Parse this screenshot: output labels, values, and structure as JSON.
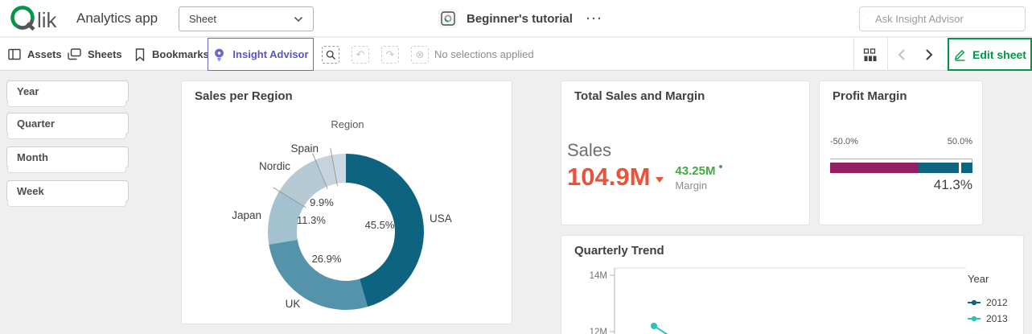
{
  "header": {
    "brand": "Qlik",
    "app_title": "Analytics app",
    "sheet_selector_value": "Sheet",
    "document_name": "Beginner's tutorial",
    "more_menu": "···",
    "search_placeholder": "Ask Insight Advisor"
  },
  "toolbar": {
    "assets_label": "Assets",
    "sheets_label": "Sheets",
    "bookmarks_label": "Bookmarks",
    "insight_advisor_label": "Insight Advisor",
    "selections_status": "No selections applied",
    "edit_sheet_label": "Edit sheet"
  },
  "sidebar": {
    "filters": [
      {
        "label": "Year"
      },
      {
        "label": "Quarter"
      },
      {
        "label": "Month"
      },
      {
        "label": "Week"
      }
    ]
  },
  "cards": {
    "sales_per_region": {
      "title": "Sales per Region"
    },
    "total_sales": {
      "title": "Total Sales and Margin",
      "sales_label": "Sales",
      "sales_value": "104.9M",
      "margin_value": "43.25M",
      "margin_label": "Margin",
      "sales_color": "#e8533a",
      "margin_color": "#42a847"
    },
    "profit_margin": {
      "title": "Profit Margin",
      "min_label": "-50.0%",
      "max_label": "50.0%",
      "value_label": "41.3%",
      "value": 41.3,
      "axis_min": -50,
      "axis_max": 50,
      "segment_boundary": 12,
      "low_color": "#931f63",
      "high_color": "#0f6480"
    },
    "quarterly_trend": {
      "title": "Quarterly Trend"
    }
  },
  "chart_data": [
    {
      "type": "pie",
      "donut": true,
      "title": "Sales per Region",
      "dimension_label": "Region",
      "segments": [
        {
          "name": "USA",
          "pct": 45.5,
          "pct_label": "45.5%",
          "color": "#0e6480"
        },
        {
          "name": "UK",
          "pct": 26.9,
          "pct_label": "26.9%",
          "color": "#5493a9"
        },
        {
          "name": "Japan",
          "pct": 11.3,
          "pct_label": "11.3%",
          "color": "#a4c1cf"
        },
        {
          "name": "Nordic",
          "pct": 9.9,
          "pct_label": "9.9%",
          "color": "#b6cad5"
        },
        {
          "name": "Spain",
          "pct": 3.5,
          "pct_label": "",
          "color": "#c4d3dc"
        },
        {
          "name": "",
          "pct": 2.9,
          "pct_label": "",
          "color": "#cdd8e0"
        }
      ]
    },
    {
      "type": "line",
      "title": "Quarterly Trend",
      "legend_title": "Year",
      "y_ticks": [
        "14M",
        "12M"
      ],
      "y_range_visible": [
        12,
        14
      ],
      "series": [
        {
          "name": "2012",
          "color": "#0e6480",
          "visible_values": []
        },
        {
          "name": "2013",
          "color": "#2cc0b8",
          "visible_values": [
            12.2
          ]
        }
      ]
    }
  ]
}
